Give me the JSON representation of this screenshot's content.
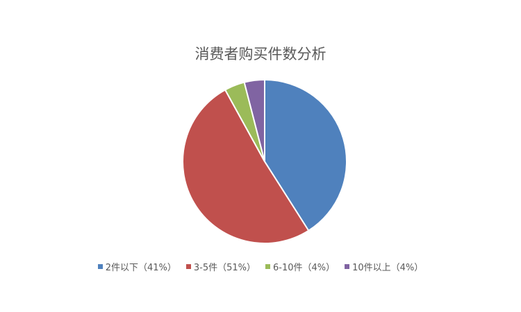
{
  "chart_data": {
    "type": "pie",
    "title": "消费者购买件数分析",
    "categories": [
      "2件以下（41%）",
      "3-5件（51%）",
      "6-10件（4%）",
      "10件以上（4%）"
    ],
    "values": [
      41,
      51,
      4,
      4
    ],
    "colors": [
      "#4F81BD",
      "#C0504D",
      "#9BBB59",
      "#8064A2"
    ],
    "legend": "bottom",
    "start": "top, clockwise"
  }
}
